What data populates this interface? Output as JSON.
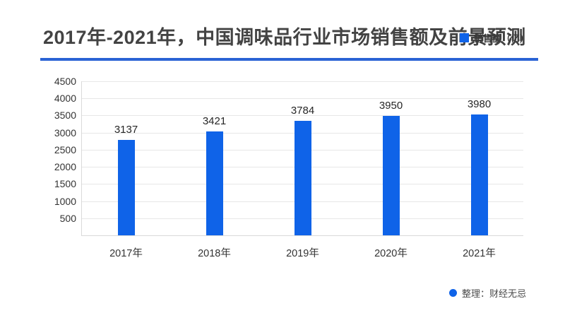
{
  "header": {
    "title": "2017年-2021年，中国调味品行业市场销售额及前景预测",
    "legend": {
      "label": "销售额（亿）"
    }
  },
  "footer": {
    "attribution": "整理：财经无忌"
  },
  "colors": {
    "bar": "#0f63e8",
    "divider": "#2a63d4",
    "title_text": "#434343",
    "axis_text": "#333333",
    "value_text": "#262626",
    "gridline": "#e7e7e7",
    "axis_line": "#d9d9d9",
    "background": "#ffffff"
  },
  "chart_data": {
    "type": "bar",
    "title": "2017年-2021年，中国调味品行业市场销售额及前景预测",
    "categories": [
      "2017年",
      "2018年",
      "2019年",
      "2020年",
      "2021年"
    ],
    "values": [
      3137,
      3421,
      3784,
      3950,
      3980
    ],
    "series_name": "销售额（亿）",
    "xlabel": "",
    "ylabel": "",
    "ylim": [
      0,
      4500
    ],
    "yticks": [
      500,
      1000,
      1500,
      2000,
      2500,
      3000,
      3500,
      4000,
      4500
    ],
    "grid": true,
    "legend_position": "top-right",
    "data_labels": true
  }
}
